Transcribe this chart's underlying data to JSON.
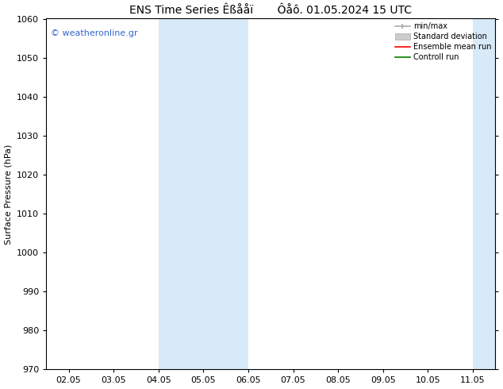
{
  "title": "ENS Time Series Êßååï       Ôåô. 01.05.2024 15 UTC",
  "ylabel": "Surface Pressure (hPa)",
  "ylim": [
    970,
    1060
  ],
  "yticks": [
    970,
    980,
    990,
    1000,
    1010,
    1020,
    1030,
    1040,
    1050,
    1060
  ],
  "xtick_labels": [
    "02.05",
    "03.05",
    "04.05",
    "05.05",
    "06.05",
    "07.05",
    "08.05",
    "09.05",
    "10.05",
    "11.05"
  ],
  "watermark": "© weatheronline.gr",
  "watermark_color": "#3366cc",
  "shaded_color": "#d8eaf8",
  "bg_color": "#ffffff",
  "title_fontsize": 10,
  "axis_fontsize": 8,
  "tick_fontsize": 8
}
